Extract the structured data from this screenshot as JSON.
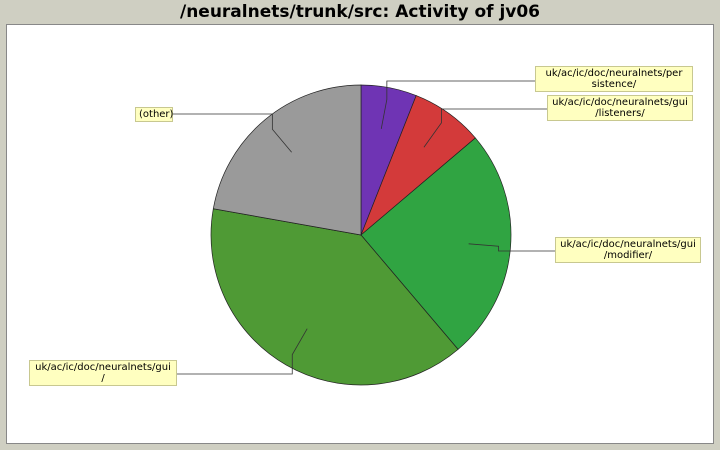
{
  "chart_data": {
    "type": "pie",
    "title": "/neuralnets/trunk/src: Activity of jv06",
    "slices": [
      {
        "label": "uk/ac/ic/doc/neuralnets/persistence/",
        "display_label": "uk/ac/ic/doc/neuralnets/per\nsistence/",
        "value": 6.0,
        "color": "#6f34b4"
      },
      {
        "label": "uk/ac/ic/doc/neuralnets/gui/listeners/",
        "display_label": "uk/ac/ic/doc/neuralnets/gui\n/listeners/",
        "value": 7.8,
        "color": "#d33a3a"
      },
      {
        "label": "uk/ac/ic/doc/neuralnets/gui/modifier/",
        "display_label": "uk/ac/ic/doc/neuralnets/gui\n/modifier/",
        "value": 25.0,
        "color": "#30a442"
      },
      {
        "label": "uk/ac/ic/doc/neuralnets/gui/",
        "display_label": "uk/ac/ic/doc/neuralnets/gui\n/",
        "value": 39.0,
        "color": "#4f9a35"
      },
      {
        "label": "(other)",
        "display_label": "(other)",
        "value": 22.2,
        "color": "#9a9a9a"
      }
    ],
    "start": "top",
    "direction": "clockwise"
  }
}
